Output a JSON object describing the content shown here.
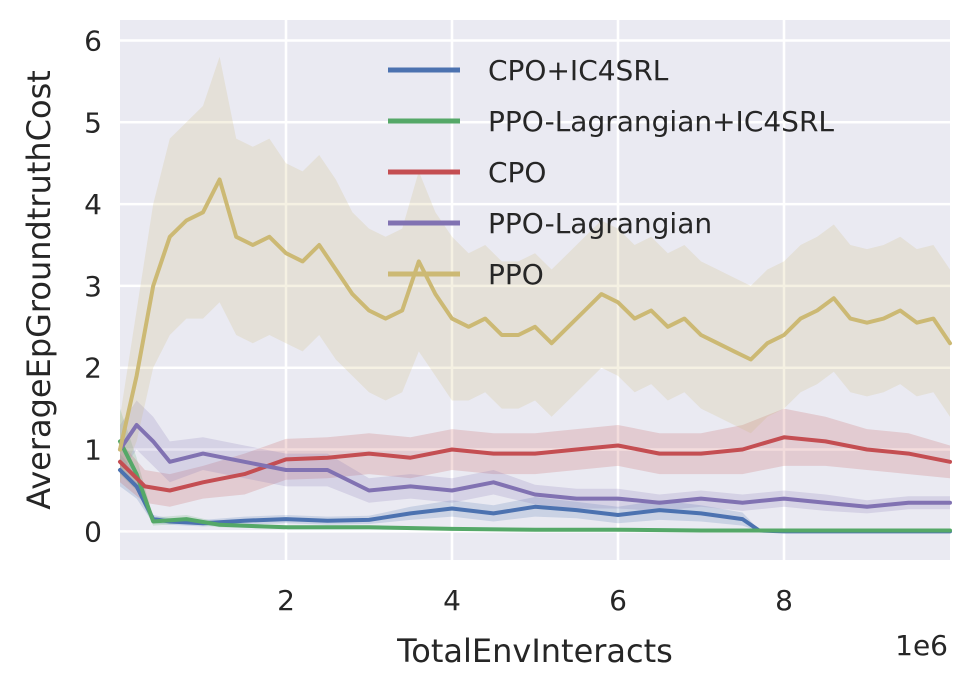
{
  "chart_data": {
    "type": "line",
    "title": "",
    "xlabel": "TotalEnvInteracts",
    "ylabel": "AverageEpGroundtruthCost",
    "x_offset_label": "1e6",
    "xlim": [
      0.0,
      10.0
    ],
    "ylim": [
      -0.35,
      6.25
    ],
    "xticks": [
      2,
      4,
      6,
      8
    ],
    "yticks": [
      0,
      1,
      2,
      3,
      4,
      5,
      6
    ],
    "grid": true,
    "legend_position": "top-right",
    "series": [
      {
        "name": "CPO+IC4SRL",
        "color": "#4c72b0",
        "x": [
          0.0,
          0.2,
          0.4,
          0.6,
          1.0,
          1.5,
          2.0,
          2.5,
          3.0,
          3.5,
          4.0,
          4.5,
          5.0,
          5.5,
          6.0,
          6.5,
          7.0,
          7.5,
          7.7,
          8.0,
          9.0,
          10.0
        ],
        "y": [
          0.75,
          0.55,
          0.15,
          0.12,
          0.1,
          0.13,
          0.15,
          0.13,
          0.14,
          0.22,
          0.28,
          0.22,
          0.3,
          0.26,
          0.2,
          0.26,
          0.22,
          0.15,
          0.01,
          0.0,
          0.0,
          0.0
        ],
        "band": [
          0.2,
          0.15,
          0.05,
          0.04,
          0.04,
          0.05,
          0.05,
          0.05,
          0.05,
          0.08,
          0.1,
          0.1,
          0.12,
          0.1,
          0.1,
          0.12,
          0.1,
          0.08,
          0.01,
          0.0,
          0.0,
          0.0
        ]
      },
      {
        "name": "PPO-Lagrangian+IC4SRL",
        "color": "#55a868",
        "x": [
          0.0,
          0.2,
          0.4,
          0.8,
          1.2,
          2.0,
          3.0,
          4.0,
          5.0,
          6.0,
          7.0,
          8.0,
          9.0,
          10.0
        ],
        "y": [
          1.1,
          0.7,
          0.12,
          0.15,
          0.08,
          0.05,
          0.05,
          0.03,
          0.02,
          0.02,
          0.01,
          0.01,
          0.01,
          0.01
        ],
        "band": [
          0.4,
          0.2,
          0.05,
          0.05,
          0.03,
          0.02,
          0.02,
          0.01,
          0.01,
          0.01,
          0.01,
          0.01,
          0.01,
          0.01
        ]
      },
      {
        "name": "CPO",
        "color": "#c44e52",
        "x": [
          0.0,
          0.3,
          0.6,
          1.0,
          1.5,
          2.0,
          2.5,
          3.0,
          3.5,
          4.0,
          4.5,
          5.0,
          5.5,
          6.0,
          6.5,
          7.0,
          7.5,
          8.0,
          8.5,
          9.0,
          9.5,
          10.0
        ],
        "y": [
          0.85,
          0.55,
          0.5,
          0.6,
          0.7,
          0.88,
          0.9,
          0.95,
          0.9,
          1.0,
          0.95,
          0.95,
          1.0,
          1.05,
          0.95,
          0.95,
          1.0,
          1.15,
          1.1,
          1.0,
          0.95,
          0.85
        ],
        "band": [
          0.25,
          0.2,
          0.2,
          0.2,
          0.25,
          0.25,
          0.25,
          0.25,
          0.25,
          0.25,
          0.25,
          0.25,
          0.25,
          0.25,
          0.25,
          0.25,
          0.3,
          0.35,
          0.3,
          0.25,
          0.25,
          0.2
        ]
      },
      {
        "name": "PPO-Lagrangian",
        "color": "#8172b2",
        "x": [
          0.0,
          0.2,
          0.4,
          0.6,
          1.0,
          1.5,
          2.0,
          2.5,
          3.0,
          3.5,
          4.0,
          4.5,
          5.0,
          5.5,
          6.0,
          6.5,
          7.0,
          7.5,
          8.0,
          8.5,
          9.0,
          9.5,
          10.0
        ],
        "y": [
          1.0,
          1.3,
          1.1,
          0.85,
          0.95,
          0.85,
          0.75,
          0.75,
          0.5,
          0.55,
          0.5,
          0.6,
          0.45,
          0.4,
          0.4,
          0.35,
          0.4,
          0.35,
          0.4,
          0.35,
          0.3,
          0.35,
          0.35
        ],
        "band": [
          0.3,
          0.3,
          0.3,
          0.25,
          0.2,
          0.2,
          0.2,
          0.2,
          0.15,
          0.15,
          0.15,
          0.15,
          0.12,
          0.12,
          0.12,
          0.1,
          0.1,
          0.1,
          0.1,
          0.1,
          0.08,
          0.08,
          0.08
        ]
      },
      {
        "name": "PPO",
        "color": "#ccb974",
        "x": [
          0.0,
          0.2,
          0.4,
          0.6,
          0.8,
          1.0,
          1.2,
          1.4,
          1.6,
          1.8,
          2.0,
          2.2,
          2.4,
          2.6,
          2.8,
          3.0,
          3.2,
          3.4,
          3.6,
          3.8,
          4.0,
          4.2,
          4.4,
          4.6,
          4.8,
          5.0,
          5.2,
          5.4,
          5.6,
          5.8,
          6.0,
          6.2,
          6.4,
          6.6,
          6.8,
          7.0,
          7.2,
          7.4,
          7.6,
          7.8,
          8.0,
          8.2,
          8.4,
          8.6,
          8.8,
          9.0,
          9.2,
          9.4,
          9.6,
          9.8,
          10.0
        ],
        "y": [
          1.0,
          1.9,
          3.0,
          3.6,
          3.8,
          3.9,
          4.3,
          3.6,
          3.5,
          3.6,
          3.4,
          3.3,
          3.5,
          3.2,
          2.9,
          2.7,
          2.6,
          2.7,
          3.3,
          2.9,
          2.6,
          2.5,
          2.6,
          2.4,
          2.4,
          2.5,
          2.3,
          2.5,
          2.7,
          2.9,
          2.8,
          2.6,
          2.7,
          2.5,
          2.6,
          2.4,
          2.3,
          2.2,
          2.1,
          2.3,
          2.4,
          2.6,
          2.7,
          2.85,
          2.6,
          2.55,
          2.6,
          2.7,
          2.55,
          2.6,
          2.3
        ],
        "band": [
          0.4,
          0.8,
          1.0,
          1.2,
          1.2,
          1.3,
          1.5,
          1.2,
          1.2,
          1.2,
          1.1,
          1.1,
          1.1,
          1.1,
          1.0,
          1.0,
          1.0,
          1.0,
          1.1,
          1.0,
          1.0,
          0.9,
          0.9,
          0.9,
          0.9,
          0.9,
          0.9,
          0.9,
          0.9,
          0.9,
          0.9,
          0.9,
          0.9,
          0.9,
          0.9,
          0.9,
          0.9,
          0.9,
          0.9,
          0.9,
          0.9,
          0.9,
          0.9,
          0.9,
          0.9,
          0.9,
          0.9,
          0.9,
          0.9,
          0.9,
          0.9
        ]
      }
    ]
  }
}
